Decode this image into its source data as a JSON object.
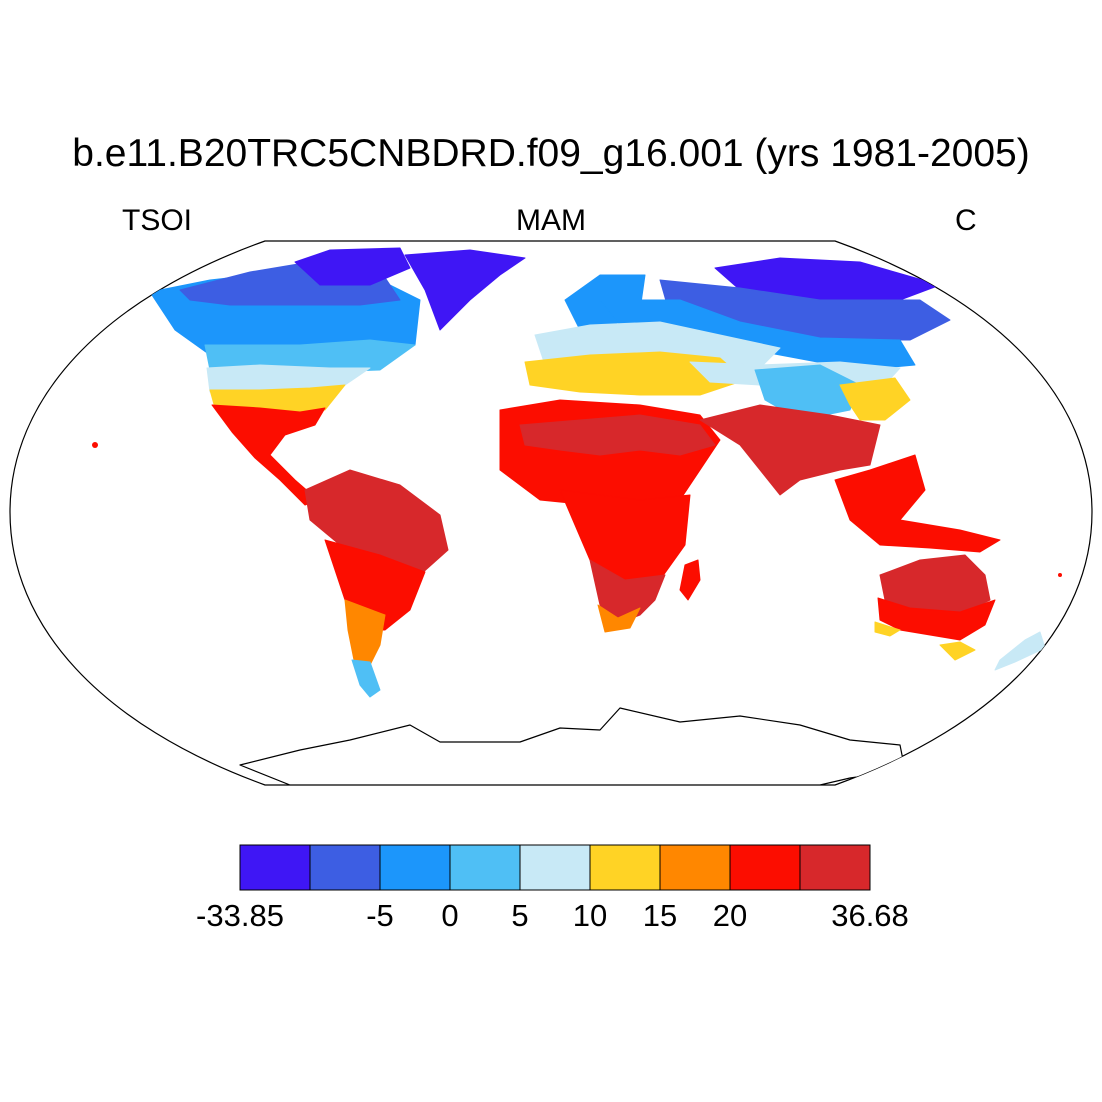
{
  "title": "b.e11.B20TRC5CNBDRD.f09_g16.001 (yrs 1981-2005)",
  "left_label": "TSOI",
  "center_label": "MAM",
  "right_label": "C",
  "projection": "Robinson",
  "colorbar": {
    "colors": [
      "#3f16f5",
      "#3d5ee3",
      "#1c96fb",
      "#4fbff5",
      "#c8e9f6",
      "#ffd325",
      "#ff8700",
      "#fc0d00",
      "#d7282b"
    ],
    "labels": [
      {
        "text": "-33.85",
        "boundary": 0
      },
      {
        "text": "-5",
        "boundary": 2
      },
      {
        "text": "0",
        "boundary": 3
      },
      {
        "text": "5",
        "boundary": 4
      },
      {
        "text": "10",
        "boundary": 5
      },
      {
        "text": "15",
        "boundary": 6
      },
      {
        "text": "20",
        "boundary": 7
      },
      {
        "text": "36.68",
        "boundary": 9
      }
    ]
  },
  "regions": [
    {
      "name": "arctic-islands-canada",
      "color": "#3f16f5"
    },
    {
      "name": "greenland",
      "color": "#3f16f5"
    },
    {
      "name": "northern-canada",
      "color": "#3d5ee3"
    },
    {
      "name": "southern-canada",
      "color": "#1c96fb"
    },
    {
      "name": "northern-usa",
      "color": "#4fbff5"
    },
    {
      "name": "central-usa",
      "color": "#c8e9f6"
    },
    {
      "name": "southern-usa",
      "color": "#ffd325"
    },
    {
      "name": "mexico-central-america",
      "color": "#fc0d00"
    },
    {
      "name": "south-america-north",
      "color": "#d7282b"
    },
    {
      "name": "south-america-central",
      "color": "#fc0d00"
    },
    {
      "name": "south-america-south",
      "color": "#ff8700"
    },
    {
      "name": "patagonia",
      "color": "#4fbff5"
    },
    {
      "name": "scandinavia",
      "color": "#1c96fb"
    },
    {
      "name": "europe",
      "color": "#c8e9f6"
    },
    {
      "name": "mediterranean",
      "color": "#ffd325"
    },
    {
      "name": "siberia-north",
      "color": "#3f16f5"
    },
    {
      "name": "siberia",
      "color": "#3d5ee3"
    },
    {
      "name": "russia-central",
      "color": "#1c96fb"
    },
    {
      "name": "central-asia",
      "color": "#c8e9f6"
    },
    {
      "name": "tibet",
      "color": "#4fbff5"
    },
    {
      "name": "china-north",
      "color": "#ffd325"
    },
    {
      "name": "north-africa-middle-east",
      "color": "#fc0d00"
    },
    {
      "name": "sahara-arabia",
      "color": "#d7282b"
    },
    {
      "name": "central-africa",
      "color": "#fc0d00"
    },
    {
      "name": "southern-africa",
      "color": "#d7282b"
    },
    {
      "name": "south-africa-tip",
      "color": "#ff8700"
    },
    {
      "name": "madagascar",
      "color": "#fc0d00"
    },
    {
      "name": "india-se-asia",
      "color": "#d7282b"
    },
    {
      "name": "indonesia",
      "color": "#fc0d00"
    },
    {
      "name": "australia-north",
      "color": "#d7282b"
    },
    {
      "name": "australia-south",
      "color": "#fc0d00"
    },
    {
      "name": "australia-coast",
      "color": "#ffd325"
    },
    {
      "name": "new-zealand",
      "color": "#c8e9f6"
    }
  ]
}
